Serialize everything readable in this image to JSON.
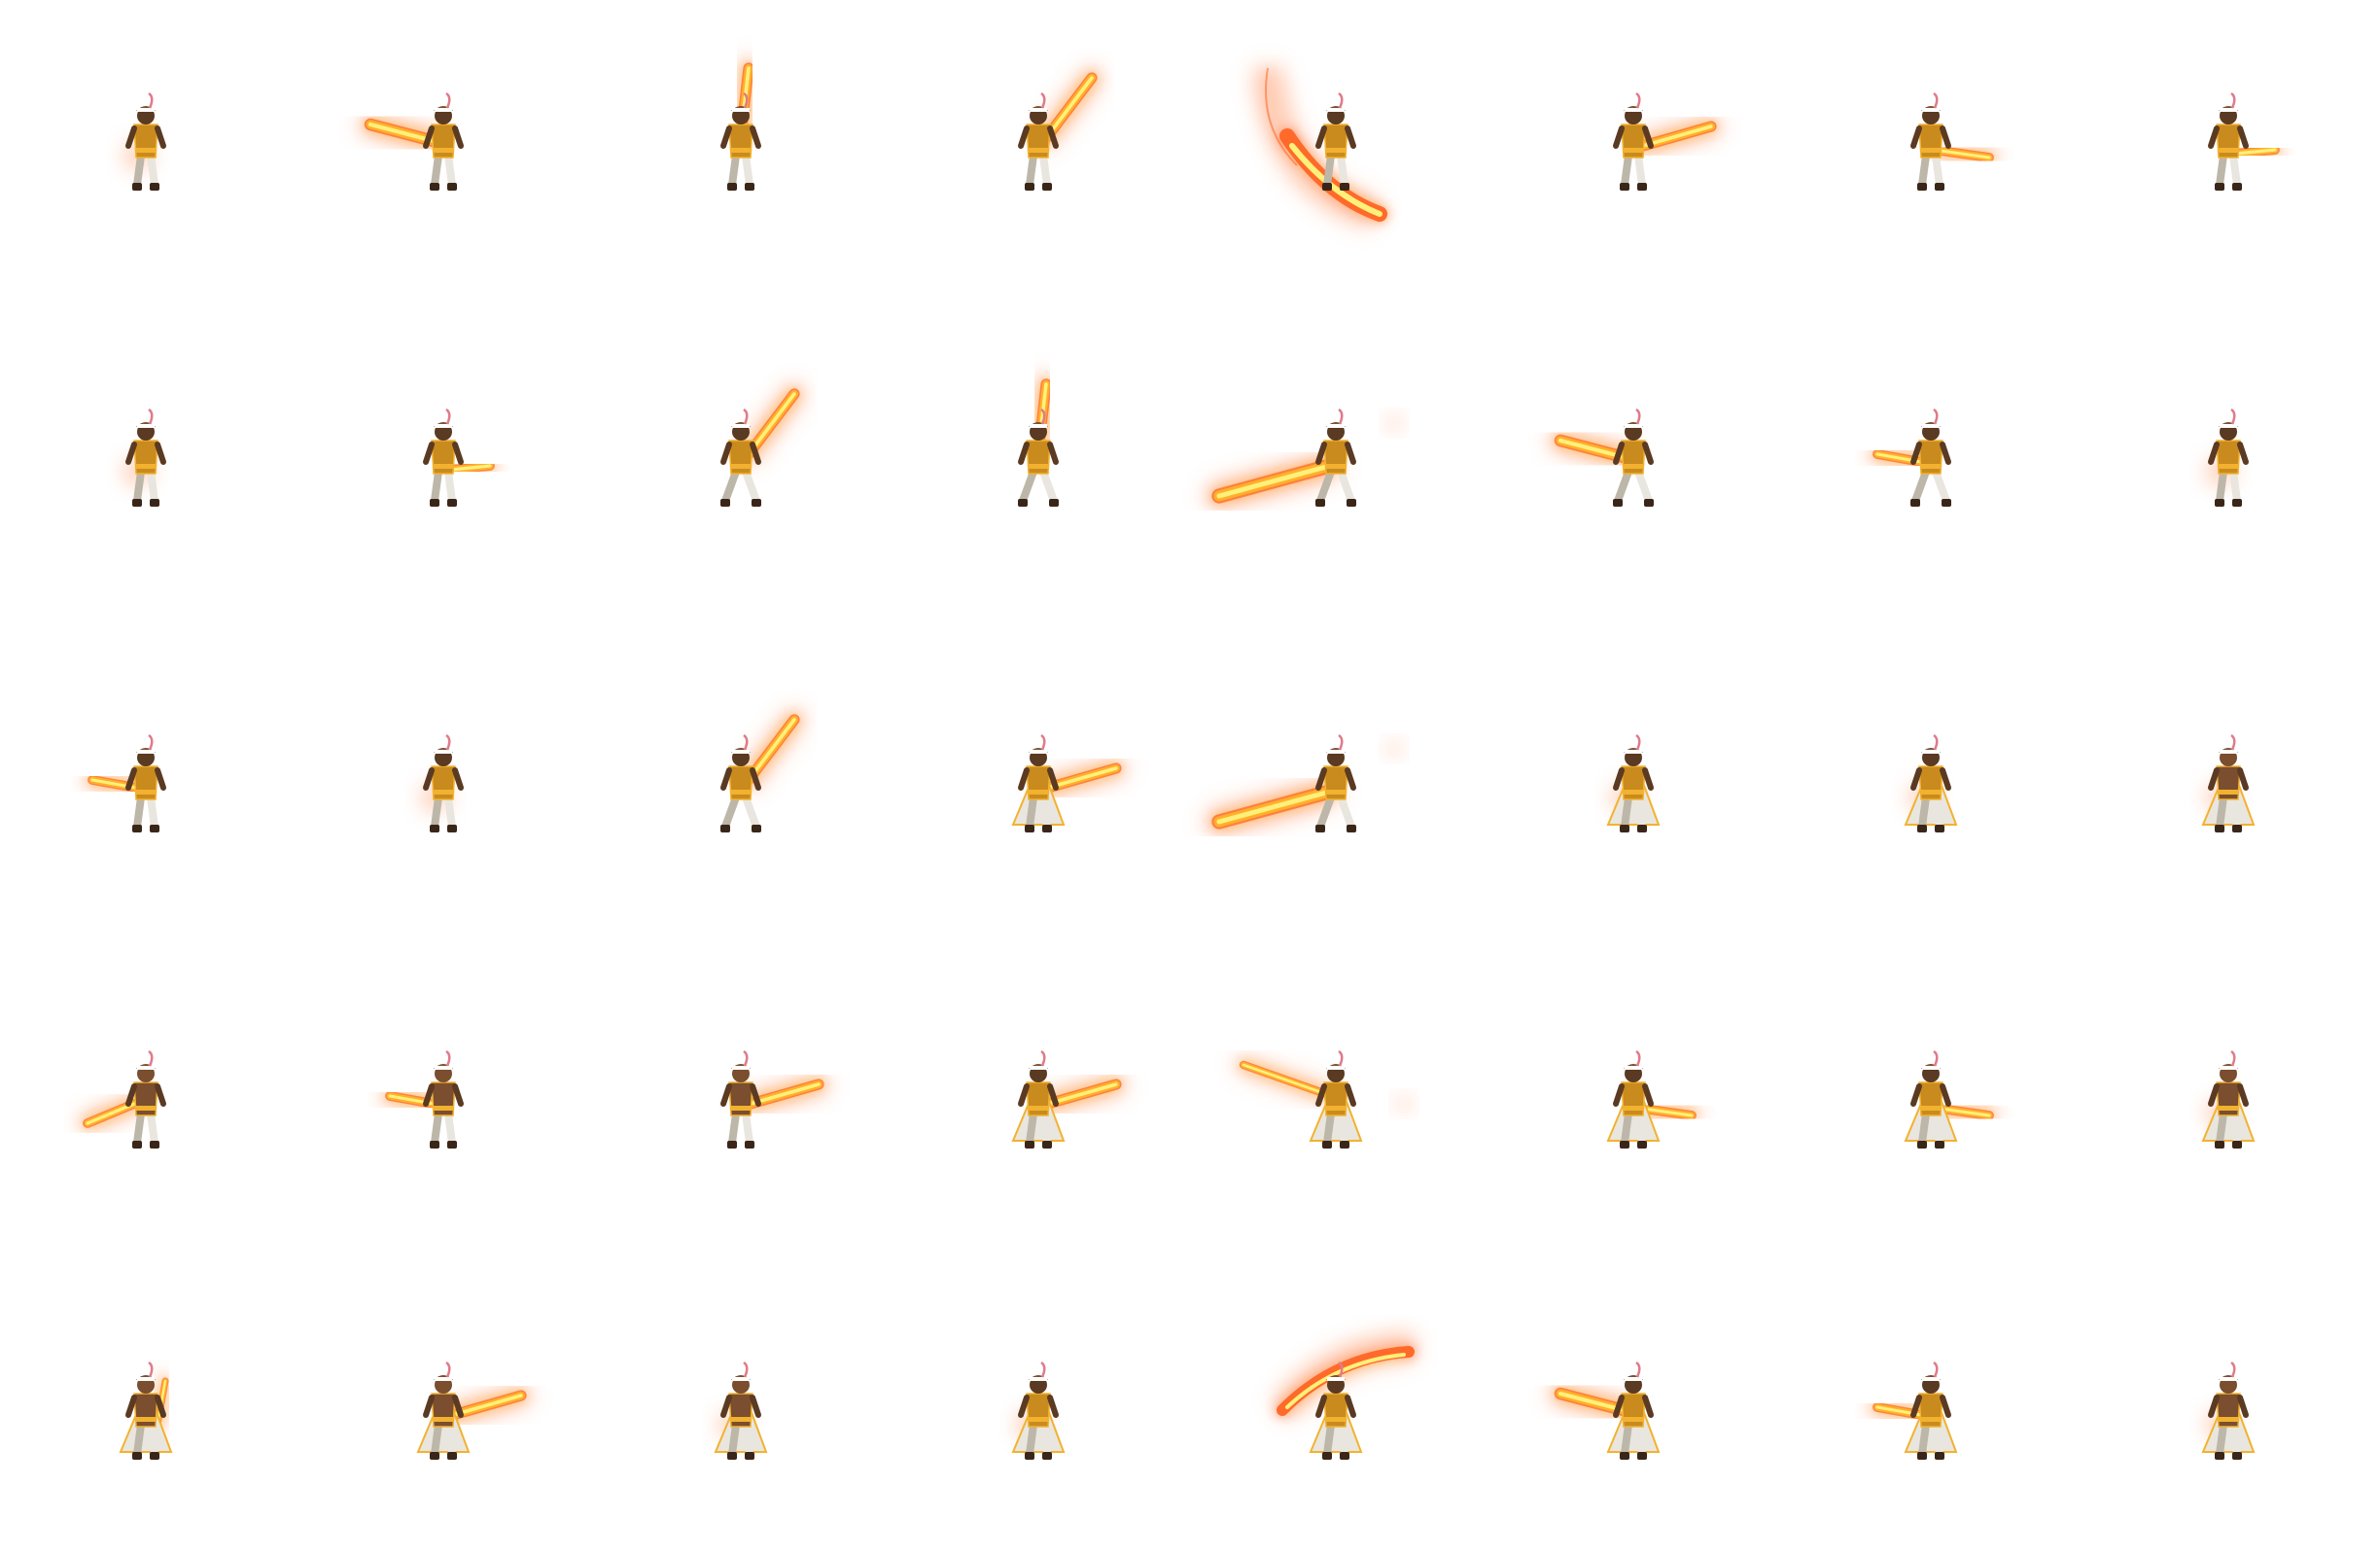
{
  "sprite_sheet": {
    "rows": 5,
    "columns": 8,
    "background": "#ffffff",
    "colors": {
      "skin": "#5a3a22",
      "hair": "#7a4e2e",
      "robe": "#e9e6df",
      "robe_shadow": "#bdb7aa",
      "armor_gold": "#c98a1e",
      "trim_gold": "#f2b230",
      "boots": "#3a2618",
      "headband": "#ffffff",
      "feather": "#e07b8a",
      "flame_core": "#fff07a",
      "flame_mid": "#ffb02a",
      "flame_outer": "#ff6a2a",
      "flame_haze": "#ffb08a"
    },
    "frames": [
      {
        "row": 0,
        "col": 0,
        "pose": "idle-front",
        "effect": "ember"
      },
      {
        "row": 0,
        "col": 1,
        "pose": "windup",
        "effect": "blade-left"
      },
      {
        "row": 0,
        "col": 2,
        "pose": "raise",
        "effect": "blade-up"
      },
      {
        "row": 0,
        "col": 3,
        "pose": "jump",
        "effect": "blade-upright"
      },
      {
        "row": 0,
        "col": 4,
        "pose": "spin",
        "effect": "arc-sweep"
      },
      {
        "row": 0,
        "col": 5,
        "pose": "crouch",
        "effect": "blade-right"
      },
      {
        "row": 0,
        "col": 6,
        "pose": "crouch",
        "effect": "blade-right-short"
      },
      {
        "row": 0,
        "col": 7,
        "pose": "recover",
        "effect": "blade-right-small"
      },
      {
        "row": 1,
        "col": 0,
        "pose": "idle-front",
        "effect": "ember"
      },
      {
        "row": 1,
        "col": 1,
        "pose": "stance",
        "effect": "blade-right-small"
      },
      {
        "row": 1,
        "col": 2,
        "pose": "stance-wide",
        "effect": "blade-upright"
      },
      {
        "row": 1,
        "col": 3,
        "pose": "stance-wide",
        "effect": "blade-up"
      },
      {
        "row": 1,
        "col": 4,
        "pose": "lunge-left",
        "effect": "blade-left-long"
      },
      {
        "row": 1,
        "col": 5,
        "pose": "lunge-left",
        "effect": "blade-left"
      },
      {
        "row": 1,
        "col": 6,
        "pose": "lunge-left",
        "effect": "blade-left-short"
      },
      {
        "row": 1,
        "col": 7,
        "pose": "recover",
        "effect": "ember"
      },
      {
        "row": 2,
        "col": 0,
        "pose": "side",
        "effect": "blade-left-short"
      },
      {
        "row": 2,
        "col": 1,
        "pose": "side",
        "effect": "ember"
      },
      {
        "row": 2,
        "col": 2,
        "pose": "stance-wide",
        "effect": "blade-upright"
      },
      {
        "row": 2,
        "col": 3,
        "pose": "robe-flare",
        "effect": "blade-right"
      },
      {
        "row": 2,
        "col": 4,
        "pose": "lunge-left",
        "effect": "blade-left-long"
      },
      {
        "row": 2,
        "col": 5,
        "pose": "robe-flare",
        "effect": "ember"
      },
      {
        "row": 2,
        "col": 6,
        "pose": "robe-flare",
        "effect": "ember"
      },
      {
        "row": 2,
        "col": 7,
        "pose": "robe-back",
        "effect": "ember"
      },
      {
        "row": 3,
        "col": 0,
        "pose": "back",
        "effect": "blade-left-low"
      },
      {
        "row": 3,
        "col": 1,
        "pose": "back",
        "effect": "blade-left-short"
      },
      {
        "row": 3,
        "col": 2,
        "pose": "back",
        "effect": "blade-right"
      },
      {
        "row": 3,
        "col": 3,
        "pose": "robe-flare",
        "effect": "blade-right"
      },
      {
        "row": 3,
        "col": 4,
        "pose": "robe-flare",
        "effect": "blade-left-up"
      },
      {
        "row": 3,
        "col": 5,
        "pose": "robe-flare",
        "effect": "blade-right-short"
      },
      {
        "row": 3,
        "col": 6,
        "pose": "robe-flare",
        "effect": "blade-right-short"
      },
      {
        "row": 3,
        "col": 7,
        "pose": "robe-back",
        "effect": "ember"
      },
      {
        "row": 4,
        "col": 0,
        "pose": "back-robe",
        "effect": "blade-up-small"
      },
      {
        "row": 4,
        "col": 1,
        "pose": "back-robe",
        "effect": "blade-right"
      },
      {
        "row": 4,
        "col": 2,
        "pose": "back-robe",
        "effect": "ember"
      },
      {
        "row": 4,
        "col": 3,
        "pose": "robe-flare",
        "effect": "ember"
      },
      {
        "row": 4,
        "col": 4,
        "pose": "robe-flare",
        "effect": "arc-over"
      },
      {
        "row": 4,
        "col": 5,
        "pose": "robe-flare",
        "effect": "blade-left"
      },
      {
        "row": 4,
        "col": 6,
        "pose": "robe-flare",
        "effect": "blade-left-short"
      },
      {
        "row": 4,
        "col": 7,
        "pose": "robe-back",
        "effect": "ember"
      }
    ]
  }
}
